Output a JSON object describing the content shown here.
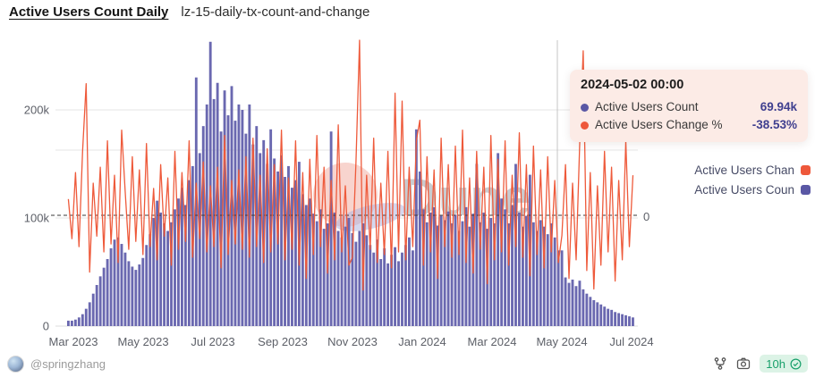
{
  "header": {
    "title": "Active Users Count Daily",
    "subtitle": "lz-15-daily-tx-count-and-change"
  },
  "tooltip": {
    "title": "2024-05-02 00:00",
    "rows": [
      {
        "label": "Active Users Count",
        "value": "69.94k",
        "marker_color": "#5a58a5"
      },
      {
        "label": "Active Users Change %",
        "value": "-38.53%",
        "marker_color": "#ee583b"
      }
    ],
    "bg_color": "#fcebe6",
    "value_color": "#3f3f8f"
  },
  "legend": {
    "items": [
      {
        "label": "Active Users Chan",
        "marker_color": "#ee583b"
      },
      {
        "label": "Active Users Coun",
        "marker_color": "#5a58a5"
      }
    ]
  },
  "watermark": {
    "text": "Dune",
    "circle_color": "#f2b0a5",
    "wave_color": "#aab0dd",
    "text_color": "#5a5f6b"
  },
  "footer": {
    "author": "@springzhang",
    "badge": {
      "text": "10h",
      "bg": "#dcf3e6",
      "color": "#18a06b"
    },
    "icons": [
      "fork-icon",
      "camera-icon",
      "check-circle-icon"
    ]
  },
  "colors": {
    "bars": "#6a68b0",
    "line": "#ee5a3b",
    "grid": "#e6e6e6",
    "zero_line": "#3a3a3a",
    "crosshair": "#c4c4c4",
    "axis_text": "#5d6068"
  },
  "chart_data": {
    "type": "bar",
    "note": "dual-axis combo: daily bars (count, left axis) + line (change %, right axis); values estimated from pixels",
    "x_ticks": [
      "Mar 2023",
      "May 2023",
      "Jul 2023",
      "Sep 2023",
      "Nov 2023",
      "Jan 2024",
      "Mar 2024",
      "May 2024",
      "Jul 2024"
    ],
    "x_range": [
      "2023-03-01",
      "2024-07-15"
    ],
    "y_left": {
      "ticks": [
        "0",
        "100k",
        "200k"
      ],
      "lim_k": [
        0,
        268
      ]
    },
    "y_right": {
      "ticks": [
        "0"
      ],
      "lim_pct": [
        -210,
        330
      ]
    },
    "grid": true,
    "highlight_x": "2024-05-02",
    "series": [
      {
        "name": "Active Users Count",
        "type": "bar",
        "axis": "left",
        "unit": "k",
        "values": [
          5,
          5,
          6,
          8,
          11,
          16,
          22,
          30,
          38,
          46,
          54,
          62,
          72,
          80,
          82,
          76,
          68,
          60,
          55,
          52,
          57,
          63,
          75,
          85,
          100,
          116,
          105,
          95,
          88,
          96,
          108,
          118,
          128,
          112,
          135,
          148,
          230,
          160,
          185,
          205,
          263,
          210,
          225,
          180,
          218,
          195,
          222,
          190,
          205,
          200,
          178,
          205,
          168,
          185,
          160,
          172,
          150,
          182,
          155,
          143,
          158,
          138,
          148,
          128,
          135,
          152,
          122,
          112,
          118,
          104,
          97,
          108,
          90,
          95,
          180,
          105,
          88,
          82,
          92,
          100,
          86,
          78,
          88,
          95,
          84,
          75,
          68,
          80,
          62,
          72,
          58,
          66,
          73,
          60,
          68,
          75,
          82,
          70,
          182,
          143,
          108,
          96,
          105,
          110,
          93,
          102,
          98,
          106,
          95,
          103,
          88,
          97,
          110,
          92,
          104,
          150,
          96,
          105,
          90,
          100,
          95,
          160,
          118,
          108,
          95,
          112,
          150,
          105,
          92,
          102,
          140,
          96,
          88,
          98,
          92,
          85,
          95,
          82,
          70,
          70,
          45,
          40,
          43,
          37,
          42,
          34,
          30,
          27,
          24,
          22,
          20,
          18,
          16,
          15,
          13,
          12,
          11,
          10,
          9,
          8
        ]
      },
      {
        "name": "Active Users Change %",
        "type": "line",
        "axis": "right",
        "unit": "%",
        "values": [
          30,
          -45,
          80,
          -60,
          120,
          248,
          -108,
          60,
          -40,
          90,
          -70,
          140,
          -55,
          75,
          -90,
          160,
          45,
          -65,
          110,
          -50,
          85,
          -75,
          135,
          -60,
          50,
          -85,
          95,
          -40,
          70,
          -95,
          120,
          -65,
          80,
          -50,
          140,
          -80,
          60,
          -45,
          100,
          -70,
          55,
          -60,
          90,
          -100,
          150,
          -75,
          65,
          -55,
          85,
          -65,
          110,
          -80,
          145,
          -60,
          75,
          -90,
          125,
          -70,
          95,
          -55,
          160,
          -85,
          70,
          -65,
          140,
          -95,
          80,
          -120,
          105,
          -75,
          150,
          -60,
          90,
          -110,
          65,
          -85,
          170,
          -70,
          55,
          -95,
          -80,
          100,
          330,
          -142,
          75,
          -65,
          145,
          -90,
          60,
          -75,
          120,
          -100,
          230,
          -70,
          215,
          -85,
          90,
          -60,
          140,
          179,
          -95,
          110,
          -70,
          85,
          -120,
          145,
          -60,
          95,
          -80,
          130,
          -75,
          160,
          -90,
          70,
          -110,
          120,
          -65,
          90,
          -130,
          150,
          -85,
          105,
          -70,
          140,
          -95,
          75,
          -60,
          155,
          -80,
          95,
          -115,
          130,
          -75,
          85,
          -100,
          110,
          -70,
          65,
          -90,
          -38.5,
          95,
          -120,
          60,
          -85,
          130,
          310,
          -105,
          80,
          -140,
          55,
          -95,
          120,
          -70,
          90,
          -125,
          65,
          -85,
          140,
          -60,
          75
        ]
      }
    ]
  }
}
